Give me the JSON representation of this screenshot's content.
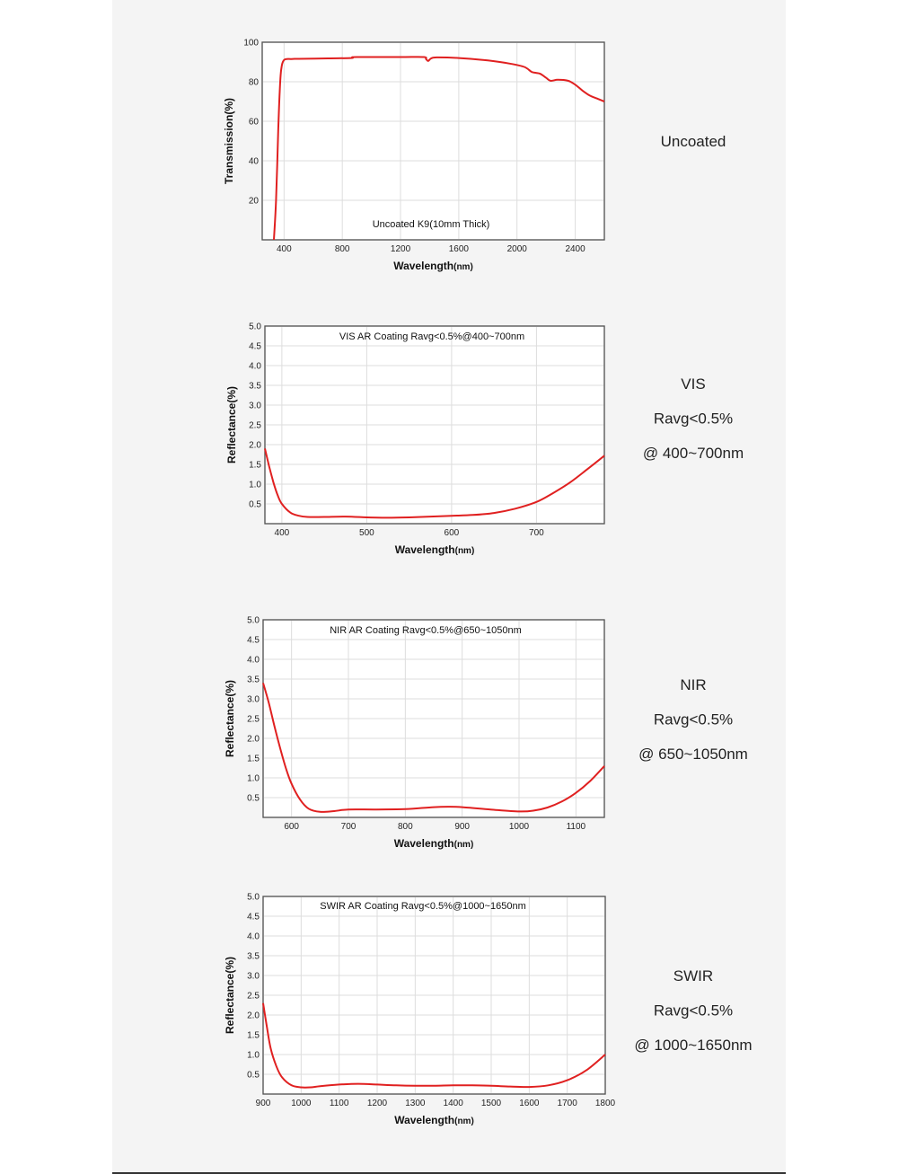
{
  "colors": {
    "curve": "#e02020",
    "grid": "#dddddd"
  },
  "chart_data": [
    {
      "type": "line",
      "title": "Uncoated K9(10mm Thick)",
      "xlabel": "Wavelength",
      "xunit": "(nm)",
      "ylabel": "Transmission(%)",
      "xlim": [
        250,
        2600
      ],
      "ylim": [
        0,
        100
      ],
      "xticks": [
        400,
        800,
        1200,
        1600,
        2000,
        2400
      ],
      "yticks": [
        20,
        40,
        60,
        80,
        100
      ],
      "ytick_labels": [
        "20",
        "40",
        "60",
        "80",
        "100"
      ],
      "side_label": [
        "Uncoated"
      ],
      "series": [
        {
          "x": [
            330,
            345,
            360,
            370,
            380,
            400,
            450,
            500,
            700,
            860,
            870,
            900,
            1200,
            1360,
            1375,
            1390,
            1410,
            1450,
            1600,
            1800,
            1950,
            2050,
            2100,
            2130,
            2160,
            2200,
            2230,
            2280,
            2350,
            2400,
            2450,
            2500,
            2550,
            2600
          ],
          "y": [
            0,
            20,
            55,
            75,
            86,
            91,
            91.5,
            91.6,
            91.8,
            92,
            92.3,
            92.5,
            92.5,
            92.5,
            91.5,
            90.5,
            91.8,
            92.3,
            92,
            90.8,
            89.2,
            87.5,
            85,
            84.5,
            84,
            82,
            80.5,
            81,
            80.5,
            78.5,
            75.5,
            73,
            71.5,
            70
          ]
        }
      ]
    },
    {
      "type": "line",
      "title": "VIS AR Coating Ravg<0.5%@400~700nm",
      "xlabel": "Wavelength",
      "xunit": "(nm)",
      "ylabel": "Reflectance(%)",
      "xlim": [
        380,
        780
      ],
      "ylim": [
        0,
        5
      ],
      "xticks": [
        400,
        500,
        600,
        700
      ],
      "yticks": [
        0.5,
        1,
        1.5,
        2,
        2.5,
        3,
        3.5,
        4,
        4.5,
        5
      ],
      "ytick_labels": [
        "0.5",
        "1.0",
        "1.5",
        "2.0",
        "2.5",
        "3.0",
        "3.5",
        "4.0",
        "4.5",
        "5.0"
      ],
      "side_label": [
        "VIS",
        "Ravg<0.5%",
        "@ 400~700nm"
      ],
      "series": [
        {
          "x": [
            380,
            385,
            390,
            395,
            400,
            410,
            420,
            430,
            450,
            475,
            500,
            525,
            550,
            575,
            600,
            625,
            650,
            675,
            700,
            720,
            740,
            760,
            780
          ],
          "y": [
            1.9,
            1.45,
            1.05,
            0.72,
            0.5,
            0.28,
            0.2,
            0.17,
            0.17,
            0.18,
            0.16,
            0.15,
            0.16,
            0.18,
            0.2,
            0.22,
            0.27,
            0.38,
            0.55,
            0.78,
            1.05,
            1.38,
            1.72
          ]
        }
      ]
    },
    {
      "type": "line",
      "title": "NIR AR Coating Ravg<0.5%@650~1050nm",
      "xlabel": "Wavelength",
      "xunit": "(nm)",
      "ylabel": "Reflectance(%)",
      "xlim": [
        550,
        1150
      ],
      "ylim": [
        0,
        5
      ],
      "xticks": [
        600,
        700,
        800,
        900,
        1000,
        1100
      ],
      "yticks": [
        0.5,
        1,
        1.5,
        2,
        2.5,
        3,
        3.5,
        4,
        4.5,
        5
      ],
      "ytick_labels": [
        "0.5",
        "1.0",
        "1.5",
        "2.0",
        "2.5",
        "3.0",
        "3.5",
        "4.0",
        "4.5",
        "5.0"
      ],
      "side_label": [
        "NIR",
        "Ravg<0.5%",
        "@ 650~1050nm"
      ],
      "series": [
        {
          "x": [
            550,
            560,
            570,
            580,
            590,
            600,
            615,
            630,
            650,
            675,
            700,
            750,
            800,
            850,
            875,
            900,
            950,
            1000,
            1025,
            1050,
            1075,
            1100,
            1125,
            1150
          ],
          "y": [
            3.4,
            2.9,
            2.3,
            1.75,
            1.25,
            0.85,
            0.45,
            0.22,
            0.14,
            0.16,
            0.2,
            0.2,
            0.21,
            0.26,
            0.27,
            0.26,
            0.2,
            0.15,
            0.17,
            0.25,
            0.4,
            0.62,
            0.92,
            1.3
          ]
        }
      ]
    },
    {
      "type": "line",
      "title": "SWIR AR Coating Ravg<0.5%@1000~1650nm",
      "xlabel": "Wavelength",
      "xunit": "(nm)",
      "ylabel": "Reflectance(%)",
      "xlim": [
        900,
        1800
      ],
      "ylim": [
        0,
        5
      ],
      "xticks": [
        900,
        1000,
        1100,
        1200,
        1300,
        1400,
        1500,
        1600,
        1700,
        1800
      ],
      "yticks": [
        0.5,
        1,
        1.5,
        2,
        2.5,
        3,
        3.5,
        4,
        4.5,
        5
      ],
      "ytick_labels": [
        "0.5",
        "1.0",
        "1.5",
        "2.0",
        "2.5",
        "3.0",
        "3.5",
        "4.0",
        "4.5",
        "5.0"
      ],
      "side_label": [
        "SWIR",
        "Ravg<0.5%",
        "@ 1000~1650nm"
      ],
      "series": [
        {
          "x": [
            900,
            910,
            920,
            935,
            950,
            975,
            1000,
            1025,
            1050,
            1100,
            1150,
            1200,
            1250,
            1300,
            1350,
            1400,
            1450,
            1500,
            1550,
            1600,
            1650,
            1700,
            1750,
            1800
          ],
          "y": [
            2.3,
            1.7,
            1.15,
            0.7,
            0.42,
            0.22,
            0.17,
            0.17,
            0.2,
            0.24,
            0.26,
            0.24,
            0.22,
            0.21,
            0.21,
            0.22,
            0.22,
            0.21,
            0.19,
            0.18,
            0.22,
            0.35,
            0.6,
            1.0
          ]
        }
      ]
    }
  ]
}
